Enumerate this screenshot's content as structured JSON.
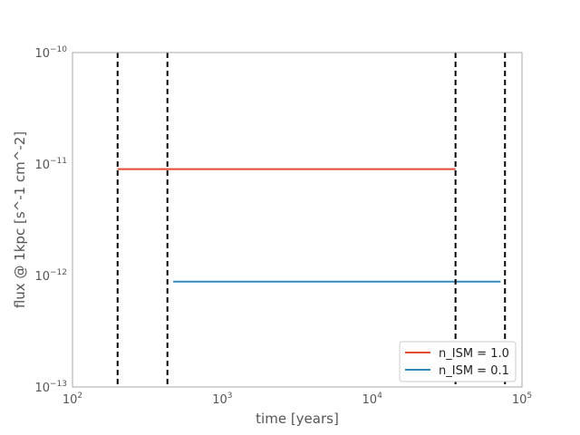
{
  "chart_data": {
    "type": "line",
    "title": "",
    "xlabel": "time [years]",
    "ylabel": "flux @ 1kpc [s^-1 cm^-2]",
    "xscale": "log",
    "yscale": "log",
    "xlim": [
      100,
      100000
    ],
    "ylim": [
      1e-13,
      1e-10
    ],
    "grid": false,
    "legend_position": "lower-right",
    "x_ticks": [
      {
        "base": "10",
        "exp": "2",
        "value": 100
      },
      {
        "base": "10",
        "exp": "3",
        "value": 1000
      },
      {
        "base": "10",
        "exp": "4",
        "value": 10000
      },
      {
        "base": "10",
        "exp": "5",
        "value": 100000
      }
    ],
    "y_ticks": [
      {
        "base": "10",
        "exp": "−13",
        "value": 1e-13
      },
      {
        "base": "10",
        "exp": "−12",
        "value": 1e-12
      },
      {
        "base": "10",
        "exp": "−11",
        "value": 1e-11
      },
      {
        "base": "10",
        "exp": "−10",
        "value": 1e-10
      }
    ],
    "series": [
      {
        "name": "n_ISM = 1.0",
        "color": "#e24a33",
        "x": [
          200,
          36000
        ],
        "y": [
          9e-12,
          9e-12
        ]
      },
      {
        "name": "n_ISM = 0.1",
        "color": "#348abd",
        "x": [
          470,
          72000
        ],
        "y": [
          8.8e-13,
          8.8e-13
        ]
      }
    ],
    "vlines": [
      {
        "x": 200,
        "color": "#000000",
        "style": "dashed"
      },
      {
        "x": 430,
        "color": "#000000",
        "style": "dashed"
      },
      {
        "x": 36000,
        "color": "#000000",
        "style": "dashed"
      },
      {
        "x": 77000,
        "color": "#000000",
        "style": "dashed"
      }
    ]
  }
}
